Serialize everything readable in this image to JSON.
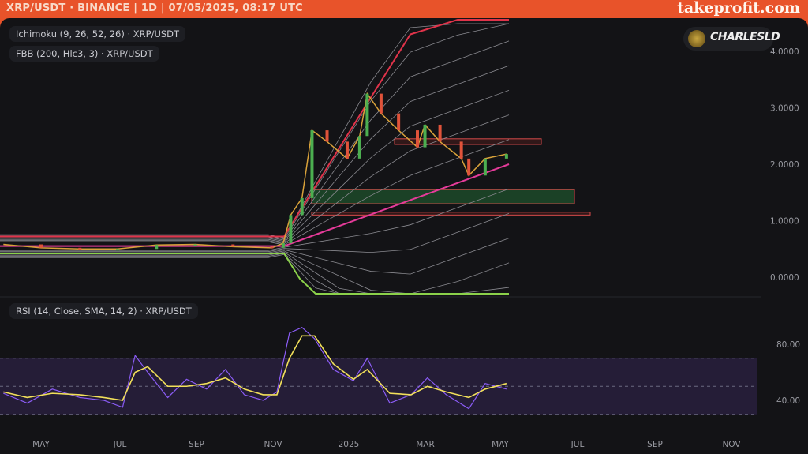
{
  "header": {
    "title": "XRP/USDT · BINANCE | 1D | 07/05/2025, 08:17 UTC",
    "brand": "takeprofit.com"
  },
  "legends": {
    "ichimoku": "Ichimoku (9, 26, 52, 26) · XRP/USDT",
    "fbb": "FBB (200, Hlc3, 3) · XRP/USDT",
    "rsi": "RSI (14, Close, SMA, 14, 2) · XRP/USDT"
  },
  "badge": {
    "name": "CHARLESLD"
  },
  "colors": {
    "header": "#e8532a",
    "background": "#131316",
    "candles_up": "#4caf50",
    "candles_down": "#e0533a",
    "upper_band": "#e0334a",
    "basis": "#e63b9a",
    "lower_band": "#8bd14a",
    "rsi": "#8b5cf6",
    "rsi_ma": "#f2e05a",
    "zone_green": "#1e4d2b",
    "zone_border": "#d84a4a"
  },
  "chart_data": [
    {
      "type": "line",
      "title": "XRP/USDT",
      "ylim": [
        -0.2,
        4.4
      ],
      "yticks": [
        "4.0000",
        "3.0000",
        "2.0000",
        "1.0000",
        "0.0000"
      ],
      "xticks": [
        "MAY",
        "JUL",
        "SEP",
        "NOV",
        "2025",
        "MAR",
        "MAY",
        "JUL",
        "SEP",
        "NOV"
      ],
      "x": [
        "2024-04-01",
        "2024-05-01",
        "2024-06-01",
        "2024-07-01",
        "2024-08-01",
        "2024-09-01",
        "2024-10-01",
        "2024-11-01",
        "2024-11-10",
        "2024-11-16",
        "2024-11-25",
        "2024-12-03",
        "2024-12-15",
        "2024-12-31",
        "2025-01-10",
        "2025-01-16",
        "2025-01-27",
        "2025-02-10",
        "2025-02-25",
        "2025-03-03",
        "2025-03-15",
        "2025-04-01",
        "2025-04-07",
        "2025-04-20",
        "2025-05-07"
      ],
      "series": [
        {
          "name": "XRP/USDT",
          "values": [
            0.58,
            0.52,
            0.5,
            0.5,
            0.57,
            0.58,
            0.54,
            0.52,
            0.6,
            1.1,
            1.4,
            2.6,
            2.4,
            2.1,
            2.5,
            3.25,
            2.9,
            2.6,
            2.3,
            2.7,
            2.4,
            2.1,
            1.8,
            2.1,
            2.18
          ]
        }
      ],
      "zones": [
        {
          "low": 1.3,
          "high": 1.55,
          "fill": "green"
        },
        {
          "low": 1.1,
          "high": 1.15,
          "fill": "red"
        },
        {
          "low": 2.35,
          "high": 2.45,
          "fill": "red"
        }
      ]
    },
    {
      "type": "line",
      "title": "RSI",
      "ylim": [
        20,
        95
      ],
      "yticks": [
        "80.00",
        "40.00"
      ],
      "bands": [
        30,
        50,
        70
      ],
      "x": [
        "2024-04-01",
        "2024-04-20",
        "2024-05-10",
        "2024-06-01",
        "2024-06-20",
        "2024-07-05",
        "2024-07-15",
        "2024-07-25",
        "2024-08-10",
        "2024-08-25",
        "2024-09-10",
        "2024-09-25",
        "2024-10-10",
        "2024-10-25",
        "2024-11-05",
        "2024-11-15",
        "2024-11-25",
        "2024-12-05",
        "2024-12-20",
        "2025-01-05",
        "2025-01-16",
        "2025-02-03",
        "2025-02-20",
        "2025-03-05",
        "2025-03-20",
        "2025-04-07",
        "2025-04-20",
        "2025-05-07"
      ],
      "series": [
        {
          "name": "RSI",
          "values": [
            45,
            38,
            48,
            42,
            40,
            35,
            72,
            60,
            42,
            55,
            48,
            62,
            44,
            40,
            46,
            88,
            92,
            84,
            62,
            54,
            70,
            38,
            44,
            56,
            44,
            34,
            52,
            48
          ]
        },
        {
          "name": "RSI MA",
          "values": [
            46,
            42,
            45,
            44,
            42,
            40,
            60,
            64,
            50,
            50,
            52,
            56,
            48,
            44,
            44,
            70,
            86,
            86,
            66,
            55,
            62,
            45,
            44,
            50,
            46,
            42,
            48,
            52
          ]
        }
      ]
    }
  ]
}
